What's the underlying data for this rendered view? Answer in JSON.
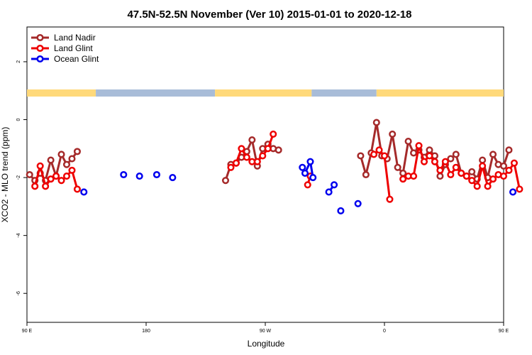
{
  "chart_data": {
    "type": "line",
    "title": "47.5N-52.5N November (Ver 10)   2015-01-01 to 2020-12-18",
    "xlabel": "Longitude",
    "ylabel": "XCO2 - MLO trend (ppm)",
    "xlim": [
      90,
      450
    ],
    "ylim": [
      -7,
      3.2
    ],
    "x_ticks": [
      {
        "value": 90,
        "label": "90 E"
      },
      {
        "value": 180,
        "label": "180"
      },
      {
        "value": 270,
        "label": "90 W"
      },
      {
        "value": 360,
        "label": "0"
      },
      {
        "value": 450,
        "label": "90 E"
      },
      {
        "value": 540,
        "label": "180"
      }
    ],
    "y_ticks": [
      {
        "value": 2,
        "label": "2"
      },
      {
        "value": 0,
        "label": "0"
      },
      {
        "value": -2,
        "label": "-2"
      },
      {
        "value": -4,
        "label": "-4"
      },
      {
        "value": -6,
        "label": "-6"
      }
    ],
    "grid": false,
    "legend_position": "top-left",
    "land_ocean_strip": {
      "colors": {
        "land": "#ffd97a",
        "ocean": "#a8bcd8"
      },
      "segments": [
        {
          "from": 90,
          "to": 142,
          "kind": "land"
        },
        {
          "from": 142,
          "to": 232,
          "kind": "ocean"
        },
        {
          "from": 232,
          "to": 305,
          "kind": "land"
        },
        {
          "from": 305,
          "to": 354,
          "kind": "ocean"
        },
        {
          "from": 354,
          "to": 520,
          "kind": "land"
        },
        {
          "from": 520,
          "to": 540,
          "kind": "ocean"
        }
      ]
    },
    "series": [
      {
        "name": "Land Nadir",
        "color": "#a52a2a",
        "segments": [
          [
            [
              92,
              -1.9
            ],
            [
              96,
              -2.1
            ],
            [
              100,
              -1.85
            ],
            [
              104,
              -2.1
            ],
            [
              108,
              -1.4
            ],
            [
              112,
              -1.95
            ],
            [
              116,
              -1.2
            ],
            [
              120,
              -1.55
            ],
            [
              124,
              -1.35
            ],
            [
              128,
              -1.1
            ]
          ],
          [
            [
              240,
              -2.1
            ],
            [
              244,
              -1.55
            ],
            [
              248,
              -1.5
            ],
            [
              252,
              -1.3
            ],
            [
              256,
              -1.1
            ],
            [
              260,
              -0.7
            ],
            [
              264,
              -1.6
            ],
            [
              268,
              -1.0
            ],
            [
              272,
              -0.85
            ],
            [
              276,
              -1.0
            ],
            [
              280,
              -1.05
            ]
          ],
          [
            [
              342,
              -1.25
            ],
            [
              346,
              -1.9
            ],
            [
              350,
              -1.15
            ],
            [
              354,
              -0.1
            ],
            [
              358,
              -1.25
            ],
            [
              362,
              -1.35
            ],
            [
              366,
              -0.5
            ],
            [
              370,
              -1.65
            ],
            [
              374,
              -1.85
            ],
            [
              378,
              -0.75
            ],
            [
              382,
              -1.15
            ],
            [
              386,
              -1.05
            ],
            [
              390,
              -1.3
            ],
            [
              394,
              -1.05
            ],
            [
              398,
              -1.25
            ],
            [
              402,
              -1.95
            ],
            [
              406,
              -1.55
            ],
            [
              410,
              -1.35
            ],
            [
              414,
              -1.2
            ],
            [
              418,
              -1.85
            ],
            [
              422,
              -1.95
            ],
            [
              426,
              -1.8
            ],
            [
              430,
              -2.05
            ],
            [
              434,
              -1.4
            ],
            [
              438,
              -2.0
            ],
            [
              442,
              -1.2
            ],
            [
              446,
              -1.55
            ],
            [
              450,
              -1.6
            ],
            [
              454,
              -1.05
            ]
          ]
        ]
      },
      {
        "name": "Land Glint",
        "color": "#ee0000",
        "segments": [
          [
            [
              96,
              -2.3
            ],
            [
              100,
              -1.6
            ],
            [
              104,
              -2.3
            ],
            [
              108,
              -2.05
            ],
            [
              112,
              -1.95
            ],
            [
              116,
              -2.1
            ],
            [
              120,
              -1.95
            ],
            [
              124,
              -1.75
            ],
            [
              128,
              -2.4
            ]
          ],
          [
            [
              244,
              -1.65
            ],
            [
              248,
              -1.5
            ],
            [
              252,
              -1.0
            ],
            [
              256,
              -1.3
            ],
            [
              260,
              -1.45
            ],
            [
              264,
              -1.45
            ],
            [
              268,
              -1.25
            ],
            [
              272,
              -1.0
            ],
            [
              276,
              -0.5
            ]
          ],
          [
            [
              302,
              -2.25
            ],
            [
              304,
              -1.95
            ]
          ],
          [
            [
              352,
              -1.2
            ],
            [
              356,
              -1.05
            ],
            [
              360,
              -1.25
            ],
            [
              364,
              -2.75
            ]
          ],
          [
            [
              374,
              -2.05
            ],
            [
              378,
              -1.95
            ],
            [
              382,
              -1.95
            ],
            [
              386,
              -0.9
            ],
            [
              390,
              -1.45
            ],
            [
              394,
              -1.25
            ],
            [
              398,
              -1.45
            ],
            [
              402,
              -1.75
            ],
            [
              406,
              -1.45
            ],
            [
              410,
              -1.9
            ],
            [
              414,
              -1.65
            ],
            [
              418,
              -1.85
            ],
            [
              422,
              -1.95
            ],
            [
              426,
              -2.1
            ],
            [
              430,
              -2.3
            ],
            [
              434,
              -1.6
            ],
            [
              438,
              -2.3
            ],
            [
              442,
              -2.05
            ],
            [
              446,
              -1.9
            ],
            [
              450,
              -1.95
            ],
            [
              454,
              -1.75
            ],
            [
              458,
              -1.5
            ],
            [
              462,
              -2.4
            ]
          ]
        ]
      },
      {
        "name": "Ocean Glint",
        "color": "#0000ee",
        "segments": [
          [
            [
              133,
              -2.5
            ]
          ],
          [
            [
              163,
              -1.9
            ]
          ],
          [
            [
              175,
              -1.95
            ]
          ],
          [
            [
              188,
              -1.9
            ]
          ],
          [
            [
              200,
              -2.0
            ]
          ],
          [
            [
              298,
              -1.65
            ],
            [
              300,
              -1.85
            ],
            [
              304,
              -1.45
            ],
            [
              306,
              -2.0
            ]
          ],
          [
            [
              318,
              -2.5
            ],
            [
              322,
              -2.25
            ]
          ],
          [
            [
              327,
              -3.15
            ]
          ],
          [
            [
              340,
              -2.9
            ]
          ],
          [
            [
              457,
              -2.5
            ]
          ]
        ]
      }
    ]
  }
}
